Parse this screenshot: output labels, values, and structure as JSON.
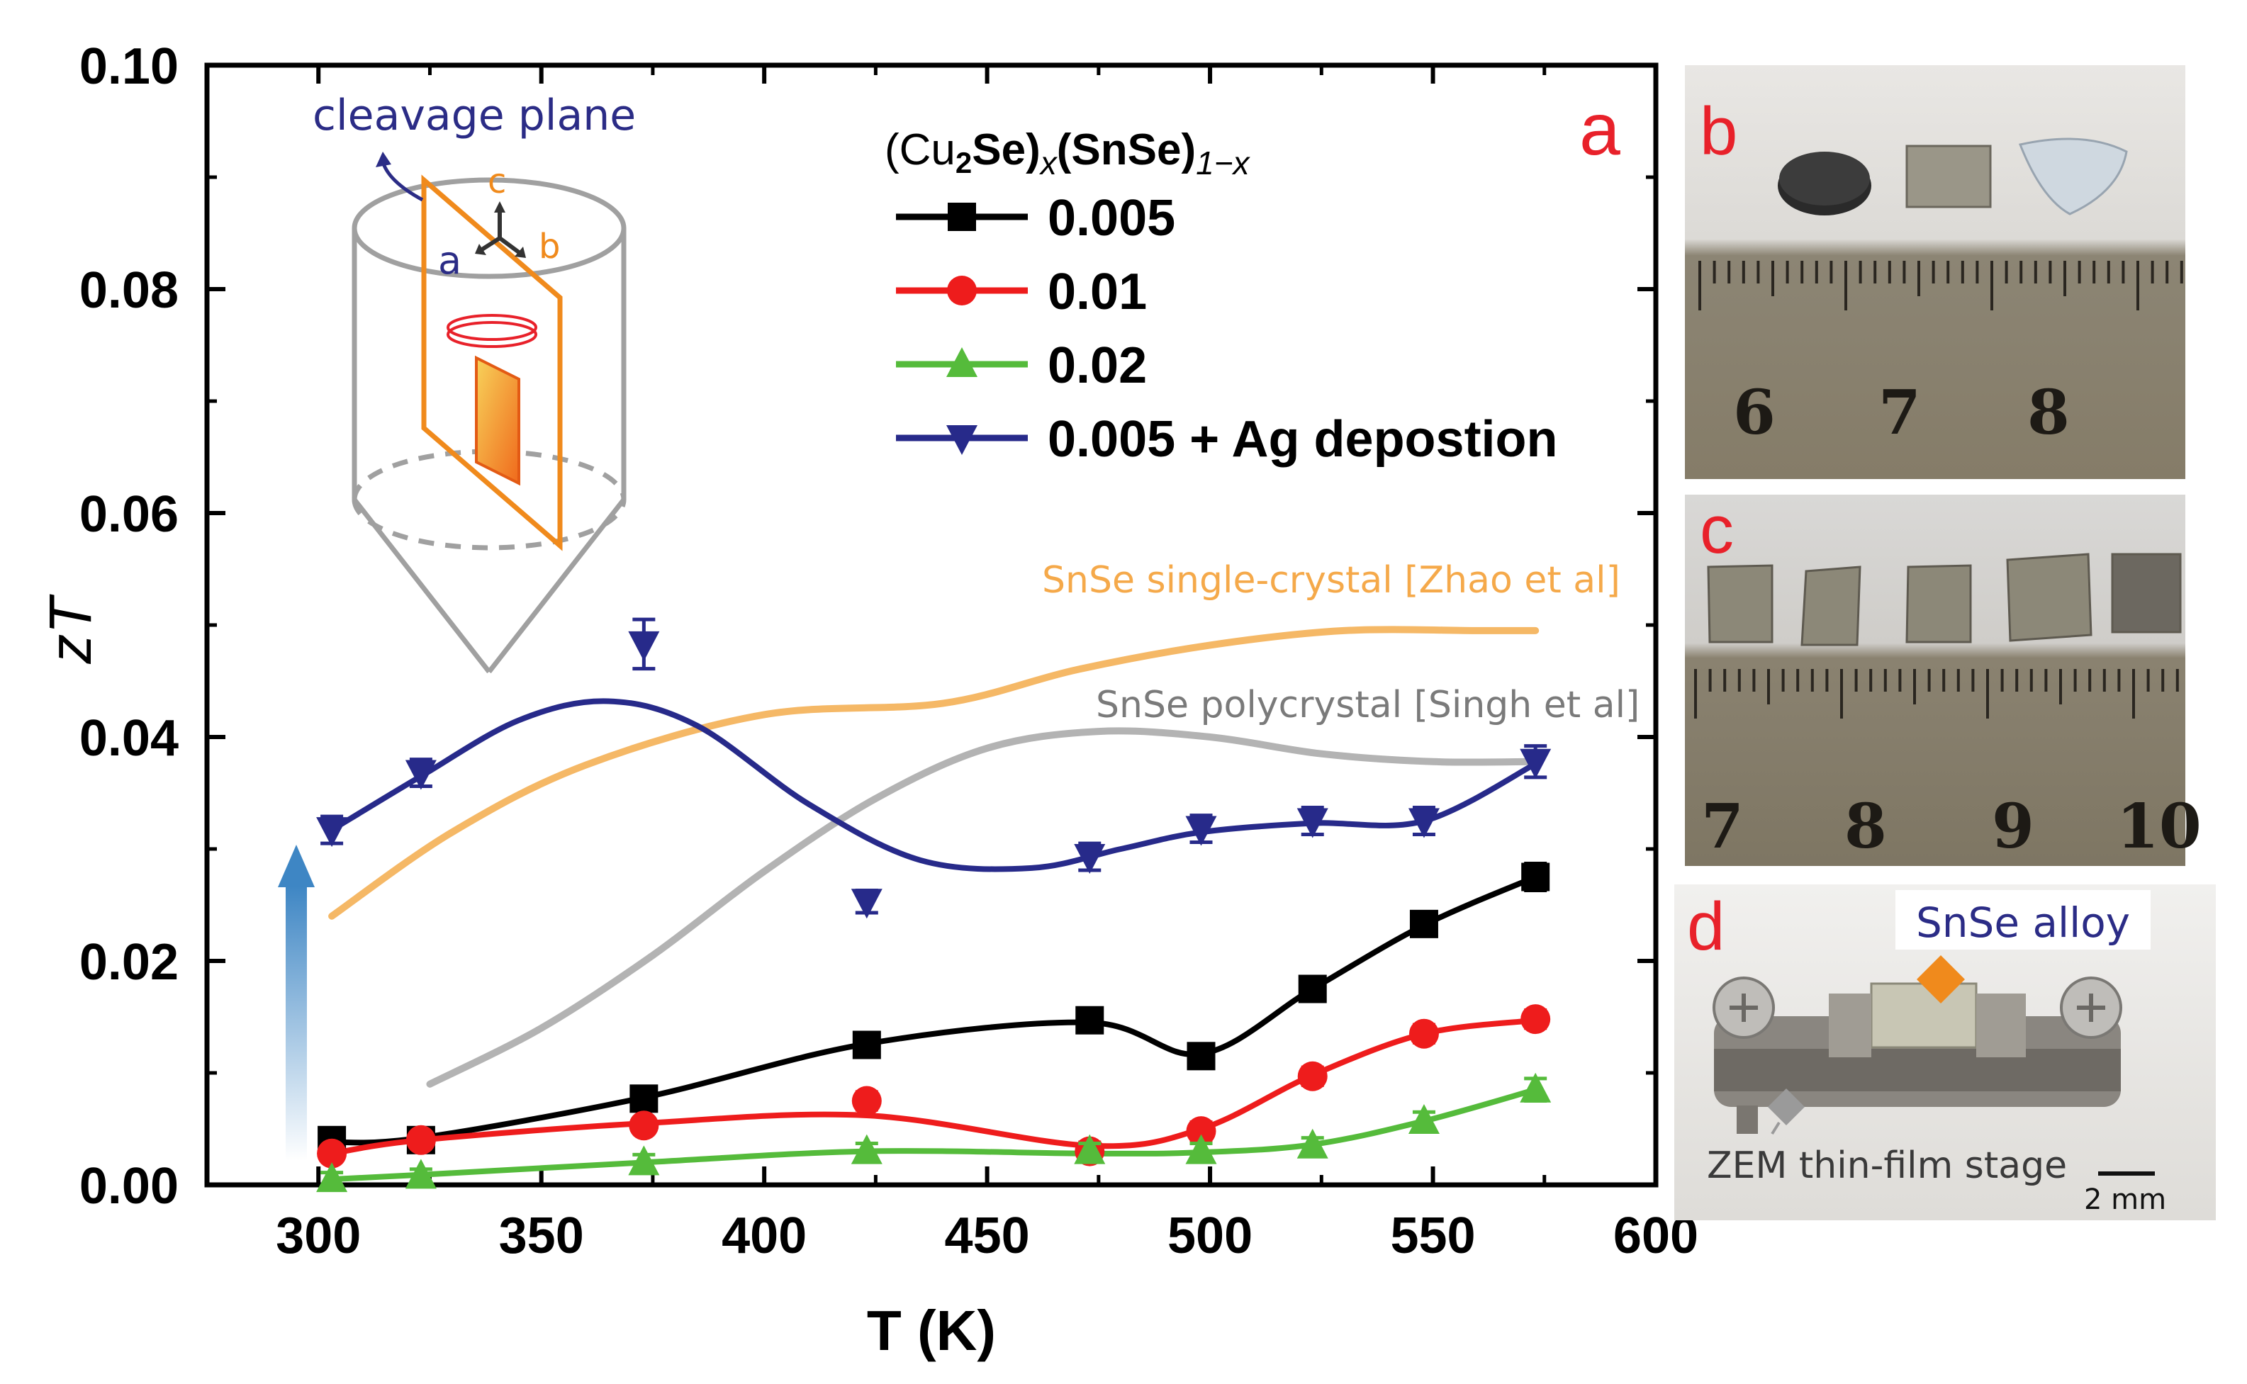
{
  "chart_data": {
    "type": "line",
    "panel_label": "a",
    "xlabel": "T (K)",
    "ylabel": "zT",
    "xlim": [
      275,
      600
    ],
    "ylim": [
      0,
      0.1
    ],
    "xticks": [
      300,
      350,
      400,
      450,
      500,
      550,
      600
    ],
    "yticks": [
      0.0,
      0.02,
      0.04,
      0.06,
      0.08,
      0.1
    ],
    "ytick_labels": [
      "0.00",
      "0.02",
      "0.04",
      "0.06",
      "0.08",
      "0.10"
    ],
    "legend": {
      "title_parts": [
        "(Cu",
        "2",
        "Se)",
        "x",
        "(SnSe)",
        "1−x"
      ],
      "placement": "top-center"
    },
    "series": [
      {
        "name": "0.005",
        "color": "#000000",
        "marker": "square",
        "x": [
          303,
          323,
          373,
          423,
          473,
          498,
          523,
          548,
          573
        ],
        "y": [
          0.004,
          0.004,
          0.0077,
          0.0125,
          0.0147,
          0.0115,
          0.0175,
          0.0233,
          0.0275
        ],
        "err": [
          0.0008,
          0.0008,
          0.0008,
          0.0008,
          0.0008,
          0.001,
          0.0008,
          0.001,
          0.0012
        ]
      },
      {
        "name": "0.01",
        "color": "#ee1c1c",
        "marker": "circle",
        "x": [
          303,
          323,
          373,
          423,
          473,
          498,
          523,
          548,
          573
        ],
        "y": [
          0.0028,
          0.004,
          0.0053,
          0.0075,
          0.003,
          0.0048,
          0.0097,
          0.0135,
          0.0148
        ],
        "err": [
          0.0007,
          0.0007,
          0.0007,
          0.0008,
          0.0008,
          0.0008,
          0.0008,
          0.0008,
          0.0008
        ]
      },
      {
        "name": "0.02",
        "color": "#55bb3b",
        "marker": "triangle-up",
        "x": [
          303,
          323,
          373,
          423,
          473,
          498,
          523,
          548,
          573
        ],
        "y": [
          0.0005,
          0.0008,
          0.002,
          0.003,
          0.003,
          0.003,
          0.0035,
          0.0057,
          0.0085
        ],
        "err": [
          0.0006,
          0.0006,
          0.0007,
          0.0007,
          0.0007,
          0.0007,
          0.0007,
          0.0008,
          0.001
        ]
      },
      {
        "name": "0.005 + Ag depostion",
        "color": "#272a8a",
        "marker": "triangle-down",
        "x": [
          303,
          323,
          373,
          423,
          473,
          498,
          523,
          548,
          573
        ],
        "y": [
          0.0317,
          0.0368,
          0.0483,
          0.0253,
          0.0293,
          0.0318,
          0.0325,
          0.0325,
          0.0378
        ],
        "err": [
          0.0012,
          0.0012,
          0.0022,
          0.001,
          0.0012,
          0.0012,
          0.0012,
          0.0012,
          0.0014
        ]
      }
    ],
    "fit_curves": [
      {
        "for": "0.005",
        "color": "#000000",
        "x": [
          303,
          323,
          373,
          423,
          473,
          498,
          523,
          548,
          573
        ],
        "y": [
          0.0038,
          0.0042,
          0.0078,
          0.0126,
          0.0145,
          0.0117,
          0.0175,
          0.0232,
          0.0275
        ]
      },
      {
        "for": "0.01",
        "color": "#ee1c1c",
        "x": [
          303,
          323,
          373,
          423,
          473,
          498,
          523,
          548,
          573
        ],
        "y": [
          0.0028,
          0.004,
          0.0055,
          0.0062,
          0.0035,
          0.005,
          0.0098,
          0.0135,
          0.0147
        ]
      },
      {
        "for": "0.02",
        "color": "#55bb3b",
        "x": [
          303,
          323,
          373,
          423,
          473,
          498,
          523,
          548,
          573
        ],
        "y": [
          0.0005,
          0.0009,
          0.002,
          0.003,
          0.0028,
          0.0029,
          0.0036,
          0.0057,
          0.0085
        ]
      },
      {
        "for": "0.005 + Ag depostion",
        "color": "#272a8a",
        "x": [
          303,
          323,
          345,
          365,
          385,
          410,
          435,
          460,
          480,
          498,
          523,
          548,
          573
        ],
        "y": [
          0.0317,
          0.0365,
          0.0415,
          0.0432,
          0.041,
          0.034,
          0.029,
          0.0283,
          0.03,
          0.0315,
          0.0323,
          0.0325,
          0.0376
        ]
      }
    ],
    "reference_curves": [
      {
        "name": "SnSe single-crystal [Zhao et al]",
        "color": "#f5b866",
        "x": [
          303,
          330,
          360,
          400,
          440,
          470,
          500,
          530,
          560,
          573
        ],
        "y": [
          0.024,
          0.0315,
          0.0375,
          0.042,
          0.043,
          0.046,
          0.0482,
          0.0495,
          0.0495,
          0.0495
        ]
      },
      {
        "name": "SnSe polycrystal [Singh et al]",
        "color": "#b3b3b3",
        "x": [
          325,
          350,
          375,
          400,
          425,
          450,
          475,
          500,
          525,
          550,
          573
        ],
        "y": [
          0.009,
          0.014,
          0.0205,
          0.028,
          0.0345,
          0.039,
          0.0405,
          0.04,
          0.0385,
          0.0378,
          0.0378
        ]
      }
    ],
    "annotations": {
      "inset_title": "cleavage plane",
      "axis_a": "a",
      "axis_b": "b",
      "axis_c": "c"
    }
  },
  "panels": {
    "b": {
      "label": "b",
      "ruler_numbers": [
        "6",
        "7",
        "8"
      ]
    },
    "c": {
      "label": "c",
      "ruler_numbers": [
        "7",
        "8",
        "9",
        "10"
      ]
    },
    "d": {
      "label": "d",
      "alloy_label": "SnSe alloy",
      "stage_label": "ZEM thin-film stage",
      "scale_label": "2 mm"
    }
  },
  "colors": {
    "panel_label": "#e8212a",
    "inset_blue": "#2b2c86",
    "inset_orange": "#f08a1c",
    "arrow_blue": "#3e86c4"
  }
}
